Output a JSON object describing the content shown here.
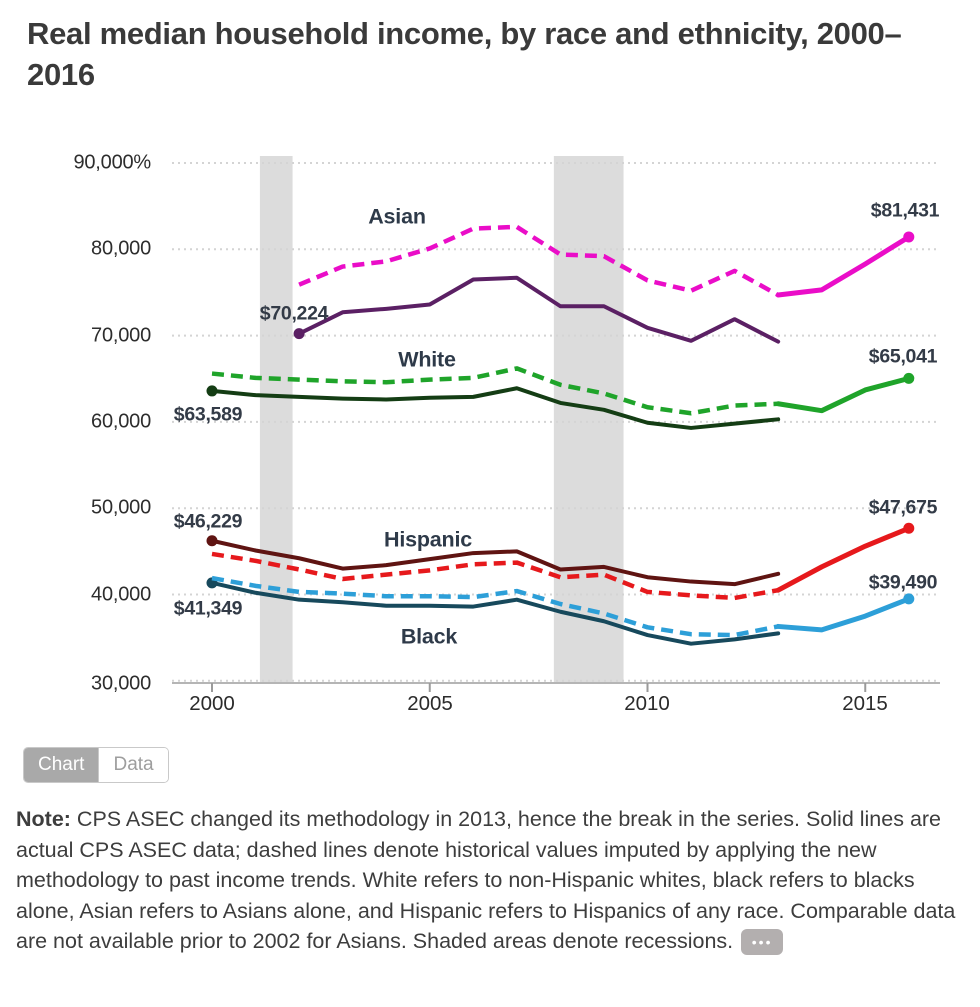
{
  "title": "Real median household income, by race and ethnicity, 2000–2016",
  "toggle": {
    "chart_label": "Chart",
    "data_label": "Data"
  },
  "note": {
    "label": "Note:",
    "text": " CPS ASEC changed its methodology in 2013, hence the break in the series. Solid lines are actual CPS ASEC data; dashed lines denote historical values imputed by applying the new methodology to past income trends. White refers to non-Hispanic whites, black refers to blacks alone, Asian refers to Asians alone, and Hispanic refers to Hispanics of any race. Comparable data are not available prior to 2002 for Asians. Shaded areas denote recessions.",
    "more_icon": "ellipsis-icon",
    "more_glyph": "•••"
  },
  "colors": {
    "asian_actual_old": "#5b2064",
    "asian_imputed_and_new": "#ea0dc8",
    "white_actual_old": "#143d14",
    "white_imputed_and_new": "#1fa42a",
    "hispanic_actual_old": "#5f1412",
    "hispanic_imputed_and_new": "#e6191c",
    "black_actual_old": "#17495c",
    "black_imputed_and_new": "#2d9fd8",
    "recession_band": "#dcdcdc",
    "gridline": "#d4d4d4",
    "axis": "#b5b5b5"
  },
  "chart_data": {
    "type": "line",
    "title": "Real median household income, by race and ethnicity, 2000–2016",
    "xlabel": "",
    "ylabel": "",
    "xlim": [
      2000,
      2016
    ],
    "ylim": [
      30000,
      90000
    ],
    "grid": "dotted horizontal",
    "legend_position": "inline labels",
    "y_ticks": [
      {
        "label": "90,000%",
        "value": 90000
      },
      {
        "label": "80,000",
        "value": 80000
      },
      {
        "label": "70,000",
        "value": 70000
      },
      {
        "label": "60,000",
        "value": 60000
      },
      {
        "label": "50,000",
        "value": 50000
      },
      {
        "label": "40,000",
        "value": 40000
      },
      {
        "label": "30,000",
        "value": 30000
      }
    ],
    "x_ticks": [
      {
        "label": "2000",
        "value": 2000
      },
      {
        "label": "2005",
        "value": 2005
      },
      {
        "label": "2010",
        "value": 2010
      },
      {
        "label": "2015",
        "value": 2015
      }
    ],
    "recession_bands": [
      [
        2001.1,
        2001.85
      ],
      [
        2007.85,
        2009.45
      ]
    ],
    "series_labels": [
      "Asian",
      "White",
      "Hispanic",
      "Black"
    ],
    "series": [
      {
        "id": "white-actual-old",
        "name": "White — actual CPS ASEC (old methodology)",
        "color": "#143d14",
        "dash": false,
        "start_dot": true,
        "end_dot": false,
        "x": [
          2000,
          2001,
          2002,
          2003,
          2004,
          2005,
          2006,
          2007,
          2008,
          2009,
          2010,
          2011,
          2012,
          2013
        ],
        "values": [
          63589,
          63100,
          62900,
          62700,
          62600,
          62800,
          62900,
          63900,
          62200,
          61400,
          59900,
          59300,
          59800,
          60300
        ]
      },
      {
        "id": "white-imputed",
        "name": "White — imputed historical values (dashed)",
        "color": "#1fa42a",
        "dash": true,
        "start_dot": false,
        "end_dot": false,
        "x": [
          2000,
          2001,
          2002,
          2003,
          2004,
          2005,
          2006,
          2007,
          2008,
          2009,
          2010,
          2011,
          2012,
          2013
        ],
        "values": [
          65600,
          65100,
          64900,
          64700,
          64600,
          64900,
          65100,
          66200,
          64300,
          63300,
          61700,
          61000,
          61900,
          62100
        ]
      },
      {
        "id": "white-actual-new",
        "name": "White — actual CPS ASEC (new methodology)",
        "color": "#1fa42a",
        "dash": false,
        "start_dot": false,
        "end_dot": true,
        "x": [
          2013,
          2014,
          2015,
          2016
        ],
        "values": [
          62100,
          61300,
          63700,
          65041
        ]
      },
      {
        "id": "black-actual-old",
        "name": "Black — actual CPS ASEC (old methodology)",
        "color": "#17495c",
        "dash": false,
        "start_dot": true,
        "end_dot": false,
        "x": [
          2000,
          2001,
          2002,
          2003,
          2004,
          2005,
          2006,
          2007,
          2008,
          2009,
          2010,
          2011,
          2012,
          2013
        ],
        "values": [
          41349,
          40200,
          39400,
          39100,
          38700,
          38700,
          38600,
          39400,
          38000,
          36900,
          35300,
          34300,
          34800,
          35500
        ]
      },
      {
        "id": "black-imputed",
        "name": "Black — imputed historical values (dashed)",
        "color": "#2d9fd8",
        "dash": true,
        "start_dot": false,
        "end_dot": false,
        "x": [
          2000,
          2001,
          2002,
          2003,
          2004,
          2005,
          2006,
          2007,
          2008,
          2009,
          2010,
          2011,
          2012,
          2013
        ],
        "values": [
          41900,
          41000,
          40300,
          40100,
          39800,
          39800,
          39700,
          40400,
          38900,
          37800,
          36200,
          35400,
          35300,
          36300
        ]
      },
      {
        "id": "black-actual-new",
        "name": "Black — actual CPS ASEC (new methodology)",
        "color": "#2d9fd8",
        "dash": false,
        "start_dot": false,
        "end_dot": true,
        "x": [
          2013,
          2014,
          2015,
          2016
        ],
        "values": [
          36300,
          35900,
          37500,
          39490
        ]
      },
      {
        "id": "hispanic-actual-old",
        "name": "Hispanic — actual CPS ASEC (old methodology)",
        "color": "#5f1412",
        "dash": false,
        "start_dot": true,
        "end_dot": false,
        "x": [
          2000,
          2001,
          2002,
          2003,
          2004,
          2005,
          2006,
          2007,
          2008,
          2009,
          2010,
          2011,
          2012,
          2013
        ],
        "values": [
          46229,
          45100,
          44200,
          43000,
          43400,
          44100,
          44800,
          45000,
          42900,
          43200,
          42000,
          41500,
          41200,
          42400
        ]
      },
      {
        "id": "hispanic-imputed",
        "name": "Hispanic — imputed historical values (dashed)",
        "color": "#e6191c",
        "dash": true,
        "start_dot": false,
        "end_dot": false,
        "x": [
          2000,
          2001,
          2002,
          2003,
          2004,
          2005,
          2006,
          2007,
          2008,
          2009,
          2010,
          2011,
          2012,
          2013
        ],
        "values": [
          44700,
          43900,
          42900,
          41800,
          42300,
          42800,
          43500,
          43700,
          42000,
          42300,
          40300,
          39900,
          39600,
          40500
        ]
      },
      {
        "id": "hispanic-actual-new",
        "name": "Hispanic — actual CPS ASEC (new methodology)",
        "color": "#e6191c",
        "dash": false,
        "start_dot": false,
        "end_dot": true,
        "x": [
          2013,
          2014,
          2015,
          2016
        ],
        "values": [
          40500,
          43200,
          45600,
          47675
        ]
      },
      {
        "id": "asian-actual-old",
        "name": "Asian — actual CPS ASEC (old methodology)",
        "color": "#5b2064",
        "dash": false,
        "start_dot": true,
        "end_dot": false,
        "x": [
          2002,
          2003,
          2004,
          2005,
          2006,
          2007,
          2008,
          2009,
          2010,
          2011,
          2012,
          2013
        ],
        "values": [
          70224,
          72700,
          73100,
          73600,
          76500,
          76700,
          73400,
          73400,
          70900,
          69400,
          71900,
          69300
        ]
      },
      {
        "id": "asian-imputed",
        "name": "Asian — imputed historical values (dashed)",
        "color": "#ea0dc8",
        "dash": true,
        "start_dot": false,
        "end_dot": false,
        "x": [
          2002,
          2003,
          2004,
          2005,
          2006,
          2007,
          2008,
          2009,
          2010,
          2011,
          2012,
          2013
        ],
        "values": [
          75900,
          78000,
          78600,
          80100,
          82400,
          82600,
          79400,
          79200,
          76400,
          75200,
          77500,
          74700
        ]
      },
      {
        "id": "asian-actual-new",
        "name": "Asian — actual CPS ASEC (new methodology)",
        "color": "#ea0dc8",
        "dash": false,
        "start_dot": false,
        "end_dot": true,
        "x": [
          2013,
          2014,
          2015,
          2016
        ],
        "values": [
          74700,
          75300,
          78300,
          81431
        ]
      }
    ],
    "annotations": [
      {
        "text": "$70,224",
        "x": 2002,
        "y": 70224,
        "placement": "above-left of Asian 2002 start dot"
      },
      {
        "text": "$63,589",
        "x": 2000,
        "y": 63589,
        "placement": "below-left of White 2000 start dot"
      },
      {
        "text": "$46,229",
        "x": 2000,
        "y": 46229,
        "placement": "above-left of Hispanic 2000 start dot"
      },
      {
        "text": "$41,349",
        "x": 2000,
        "y": 41349,
        "placement": "below-left of Black 2000 start dot"
      },
      {
        "text": "$81,431",
        "x": 2016,
        "y": 81431,
        "placement": "above Asian 2016 end dot"
      },
      {
        "text": "$65,041",
        "x": 2016,
        "y": 65041,
        "placement": "above White 2016 end dot"
      },
      {
        "text": "$47,675",
        "x": 2016,
        "y": 47675,
        "placement": "above Hispanic 2016 end dot"
      },
      {
        "text": "$39,490",
        "x": 2016,
        "y": 39490,
        "placement": "above Black 2016 end dot"
      }
    ]
  }
}
